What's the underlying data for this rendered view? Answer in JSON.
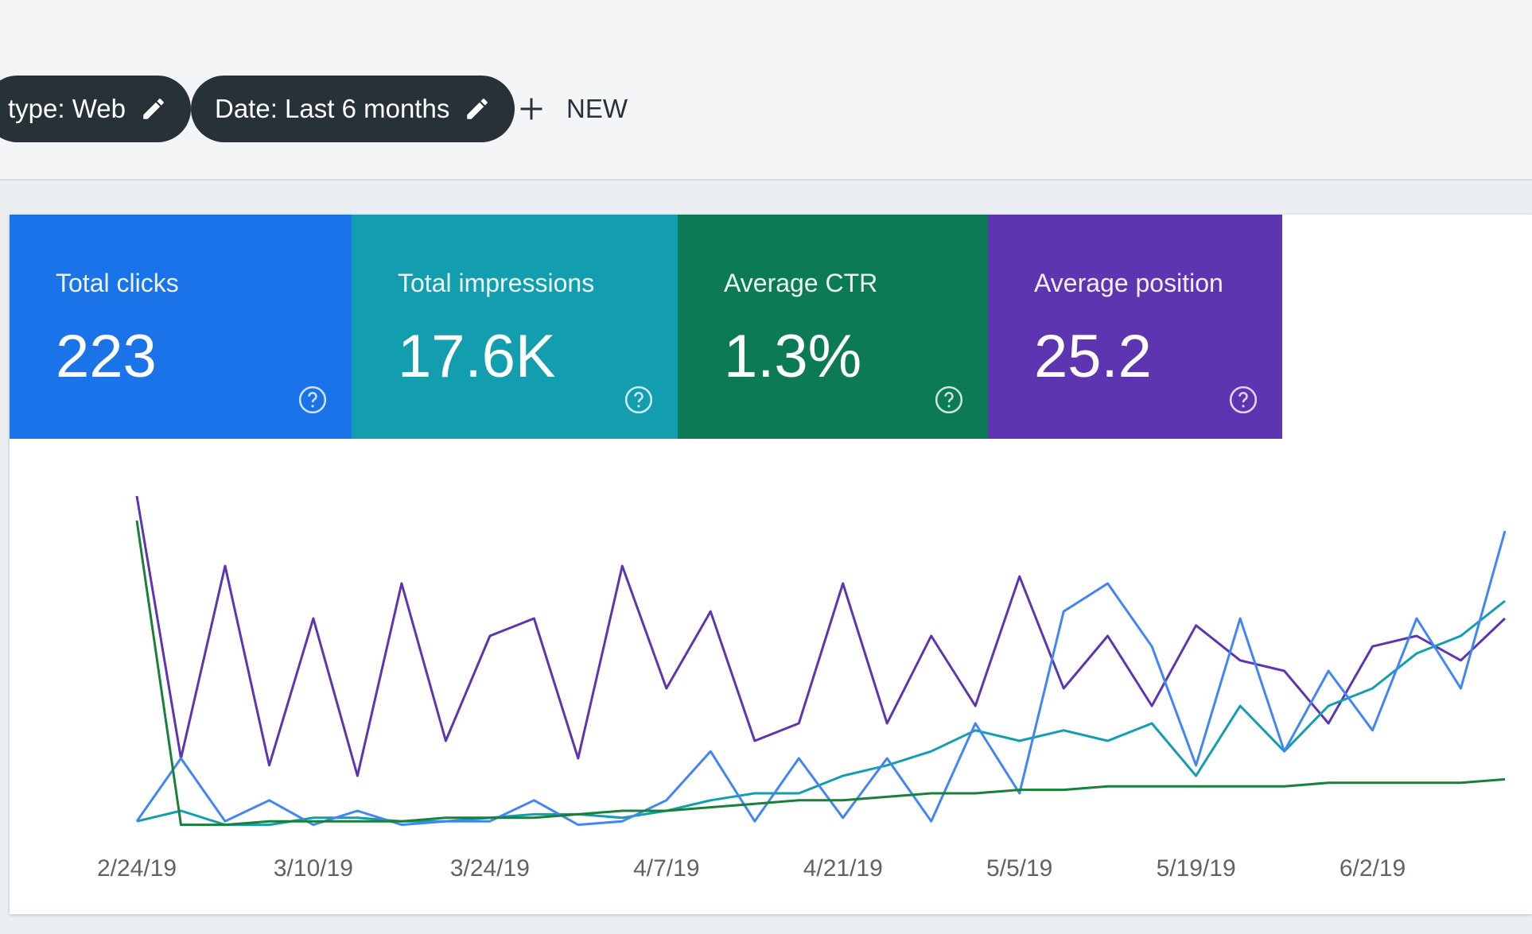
{
  "filters": {
    "chips": [
      {
        "label": "type: Web"
      },
      {
        "label": "Date: Last 6 months"
      }
    ],
    "new_button": "NEW"
  },
  "metrics": [
    {
      "label": "Total clicks",
      "value": "223",
      "color": "#1a73e8"
    },
    {
      "label": "Total impressions",
      "value": "17.6K",
      "color": "#129eaf"
    },
    {
      "label": "Average CTR",
      "value": "1.3%",
      "color": "#0b7a55"
    },
    {
      "label": "Average position",
      "value": "25.2",
      "color": "#5e35b1"
    }
  ],
  "chart_data": {
    "type": "line",
    "categories": [
      "2/24/19",
      null,
      null,
      null,
      "3/10/19",
      null,
      null,
      null,
      "3/24/19",
      null,
      null,
      null,
      "4/7/19",
      null,
      null,
      null,
      "4/21/19",
      null,
      null,
      null,
      "5/5/19",
      null,
      null,
      null,
      "5/19/19",
      null,
      null,
      null,
      "6/2/19",
      null,
      null,
      null
    ],
    "ylim": [
      0,
      100
    ],
    "series": [
      {
        "color": "#5e35b1",
        "values": [
          95,
          20,
          75,
          18,
          60,
          15,
          70,
          25,
          55,
          60,
          20,
          75,
          40,
          62,
          25,
          30,
          70,
          30,
          55,
          35,
          72,
          40,
          55,
          35,
          58,
          48,
          45,
          30,
          52,
          55,
          48,
          60
        ]
      },
      {
        "color": "#129eaf",
        "values": [
          2,
          5,
          1,
          1,
          3,
          3,
          2,
          2,
          3,
          4,
          4,
          3,
          5,
          8,
          10,
          10,
          15,
          18,
          22,
          28,
          25,
          28,
          25,
          30,
          15,
          35,
          22,
          35,
          40,
          50,
          55,
          65
        ]
      },
      {
        "color": "#4285f4",
        "values": [
          2,
          20,
          2,
          8,
          1,
          5,
          1,
          2,
          2,
          8,
          1,
          2,
          8,
          22,
          2,
          20,
          3,
          20,
          2,
          30,
          10,
          62,
          70,
          52,
          18,
          60,
          22,
          45,
          28,
          60,
          40,
          85
        ]
      },
      {
        "color": "#188038",
        "values": [
          88,
          1,
          1,
          2,
          2,
          2,
          2,
          3,
          3,
          3,
          4,
          5,
          5,
          6,
          7,
          8,
          8,
          9,
          10,
          10,
          11,
          11,
          12,
          12,
          12,
          12,
          12,
          13,
          13,
          13,
          13,
          14
        ]
      }
    ]
  }
}
